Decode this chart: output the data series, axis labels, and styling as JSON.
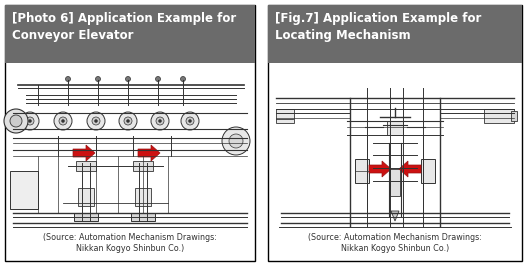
{
  "fig_width": 5.27,
  "fig_height": 2.66,
  "dpi": 100,
  "bg": "#ffffff",
  "panel_border": "#000000",
  "header_color": "#6b6b6b",
  "header_text_color": "#ffffff",
  "title1": "[Photo 6] Application Example for\nConveyor Elevator",
  "title2": "[Fig.7] Application Example for\nLocating Mechanism",
  "source": "(Source: Automation Mechanism Drawings:\nNikkan Kogyo Shinbun Co.)",
  "line_color": "#333333",
  "arrow_color": "#cc1111",
  "drawing_bg": "#ffffff"
}
